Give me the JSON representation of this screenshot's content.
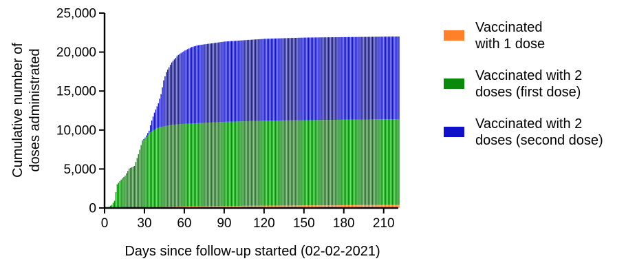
{
  "chart_data": {
    "type": "bar",
    "stacked": true,
    "title": "",
    "ylabel_lines": [
      "Cumulative number of",
      "doses administrated"
    ],
    "xlabel": "Days since follow-up started (02-02-2021)",
    "xlim": [
      0,
      221
    ],
    "ylim": [
      0,
      25000
    ],
    "x_ticks": [
      0,
      30,
      60,
      90,
      120,
      150,
      180,
      210
    ],
    "y_ticks": [
      0,
      5000,
      10000,
      15000,
      20000,
      25000
    ],
    "y_tick_labels": [
      "0",
      "5,000",
      "10,000",
      "15,000",
      "20,000",
      "25,000"
    ],
    "grid": false,
    "legend_position": "right",
    "series_style": [
      {
        "key": "one_dose",
        "color": "#ff7f2a"
      },
      {
        "key": "two_dose_first",
        "color": "#0a8a0a"
      },
      {
        "key": "two_dose_second",
        "color": "#1010c8"
      }
    ],
    "legend": [
      {
        "lines": [
          "Vaccinated",
          "with 1 dose"
        ],
        "color": "#ff7f2a"
      },
      {
        "lines": [
          "Vaccinated with 2",
          "doses (first dose)"
        ],
        "color": "#0a8a0a"
      },
      {
        "lines": [
          "Vaccinated with 2",
          "doses (second dose)"
        ],
        "color": "#1010c8"
      }
    ],
    "one_dose_knots": [
      [
        0,
        0
      ],
      [
        30,
        100
      ],
      [
        60,
        200
      ],
      [
        120,
        300
      ],
      [
        221,
        400
      ]
    ],
    "two_dose_first_knots": [
      [
        0,
        0
      ],
      [
        3,
        150
      ],
      [
        5,
        400
      ],
      [
        7,
        900
      ],
      [
        8,
        2000
      ],
      [
        9,
        3000
      ],
      [
        12,
        3600
      ],
      [
        15,
        4100
      ],
      [
        18,
        5000
      ],
      [
        22,
        5300
      ],
      [
        25,
        6800
      ],
      [
        28,
        8500
      ],
      [
        31,
        9000
      ],
      [
        34,
        9600
      ],
      [
        40,
        10200
      ],
      [
        50,
        10500
      ],
      [
        60,
        10600
      ],
      [
        90,
        10800
      ],
      [
        120,
        10900
      ],
      [
        221,
        11000
      ]
    ],
    "two_dose_second_knots": [
      [
        0,
        0
      ],
      [
        20,
        0
      ],
      [
        26,
        20
      ],
      [
        30,
        100
      ],
      [
        33,
        400
      ],
      [
        35,
        1400
      ],
      [
        37,
        2200
      ],
      [
        40,
        3100
      ],
      [
        42,
        4200
      ],
      [
        44,
        5900
      ],
      [
        46,
        6900
      ],
      [
        50,
        8000
      ],
      [
        55,
        8900
      ],
      [
        60,
        9400
      ],
      [
        65,
        9800
      ],
      [
        70,
        10000
      ],
      [
        90,
        10300
      ],
      [
        120,
        10500
      ],
      [
        150,
        10600
      ],
      [
        221,
        10600
      ]
    ]
  }
}
